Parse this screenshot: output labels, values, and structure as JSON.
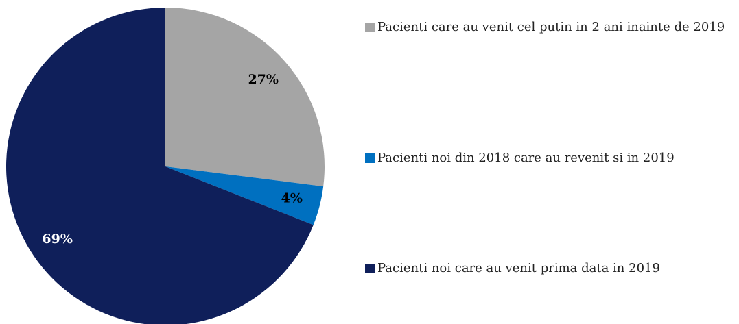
{
  "chart_data": {
    "type": "pie",
    "categories": [
      "Pacienti care au venit cel putin in 2 ani inainte de 2019",
      "Pacienti noi din 2018 care au revenit si in 2019",
      "Pacienti noi care au venit prima data in 2019"
    ],
    "values": [
      27,
      4,
      69
    ],
    "value_labels": [
      "27%",
      "4%",
      "69%"
    ],
    "colors": [
      "#a5a5a5",
      "#0070c0",
      "#0f1f5a"
    ],
    "label_colors": [
      "#000000",
      "#000000",
      "#ffffff"
    ],
    "legend": "right"
  }
}
